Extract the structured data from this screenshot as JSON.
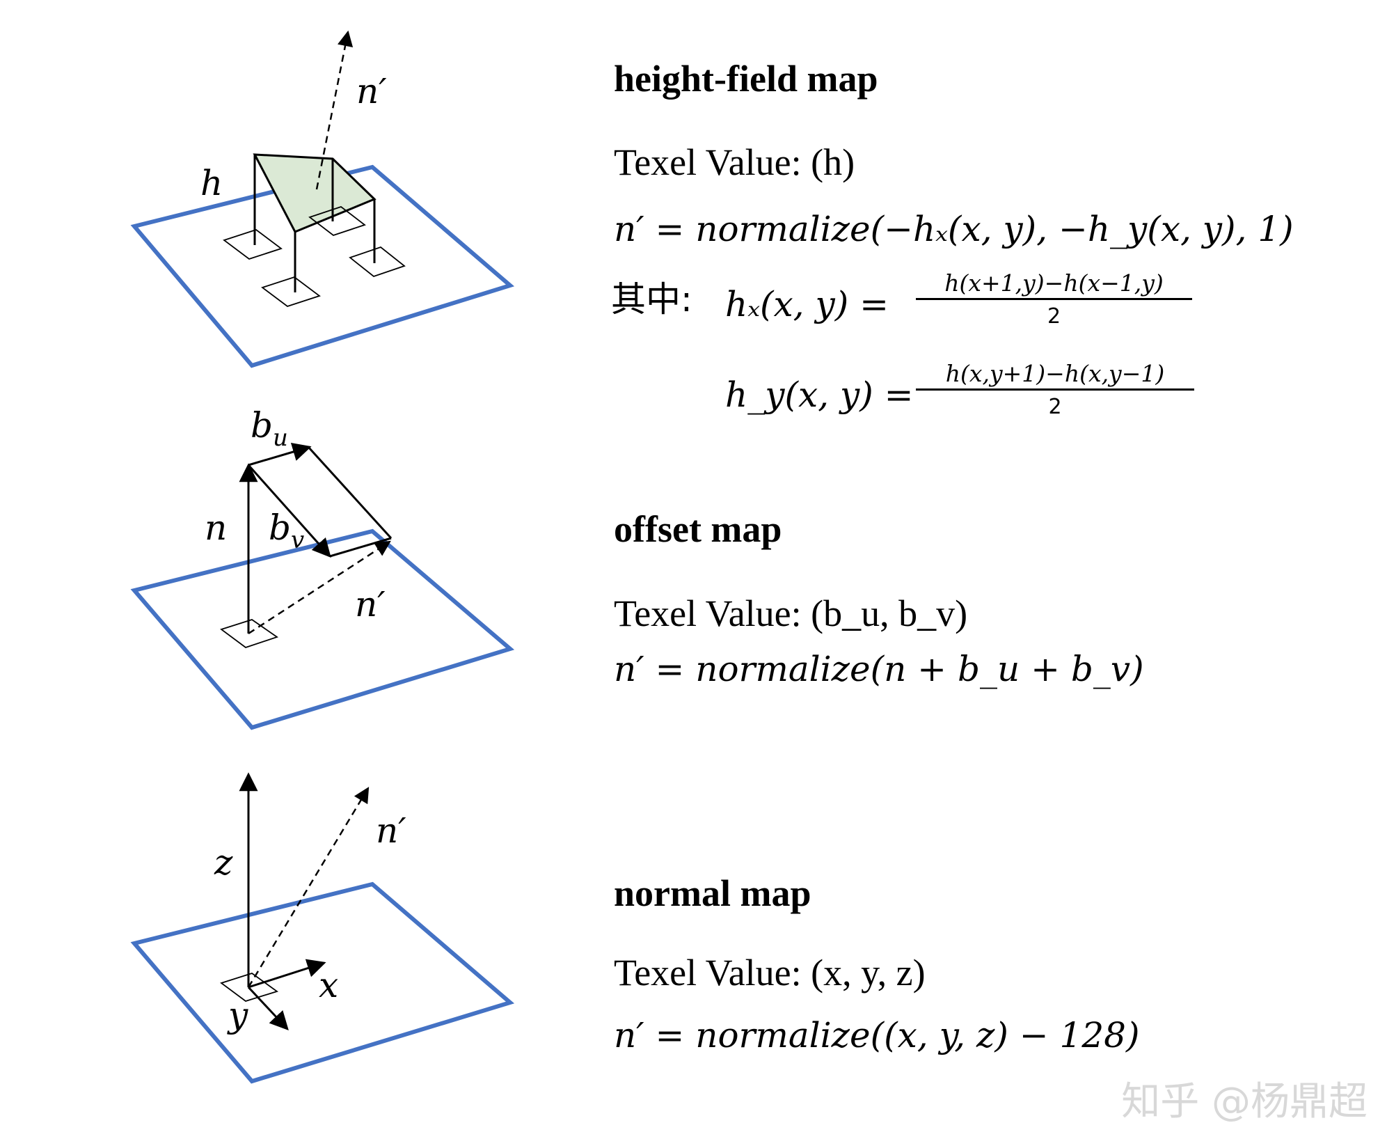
{
  "colors": {
    "plane": "#4472c4",
    "patch": "#dbe9d5",
    "ink": "#000000",
    "watermark": "#d8d8d8"
  },
  "sections": {
    "height": {
      "title": "height-field map",
      "texel_label": "Texel Value: ",
      "texel_value": "(h)",
      "equation": "n′ = normalize(−hₓ(x, y), −h_y(x, y), 1)",
      "where_label": "其中:",
      "hx_lhs": "hₓ(x, y) =",
      "hx_num": "h(x+1,y)−h(x−1,y)",
      "hx_den": "2",
      "hy_lhs": "h_y(x, y) =",
      "hy_num": "h(x,y+1)−h(x,y−1)",
      "hy_den": "2",
      "diagram_labels": {
        "h": "h",
        "n_prime": "n′"
      }
    },
    "offset": {
      "title": "offset map",
      "texel_label": "Texel Value: ",
      "texel_value": "(b_u, b_v)",
      "equation": "n′ = normalize(n + b_u + b_v)",
      "diagram_labels": {
        "bu": "b_u",
        "bv": "b_v",
        "n": "n",
        "n_prime": "n′"
      }
    },
    "normal": {
      "title": "normal map",
      "texel_label": "Texel Value: ",
      "texel_value": "(x, y, z)",
      "equation": "n′ = normalize((x, y, z) − 128)",
      "diagram_labels": {
        "z": "z",
        "x": "x",
        "y": "y",
        "n_prime": "n′"
      }
    }
  },
  "watermark": "知乎 @杨鼎超"
}
